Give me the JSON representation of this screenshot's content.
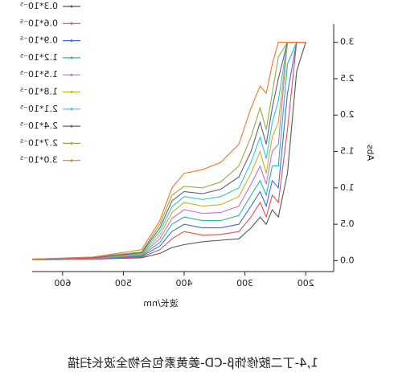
{
  "chart_data": {
    "type": "line",
    "x_label": "波长/nm",
    "y_label": "Abs",
    "caption": "1,4-丁二胺修饰β-CD-姜黄素包合物全波长扫描",
    "mirrored": true,
    "x": [
      650,
      550,
      470,
      440,
      420,
      400,
      370,
      340,
      310,
      290,
      275,
      265,
      255,
      245,
      230,
      215,
      200
    ],
    "series": [
      {
        "name": "0.3*10⁻⁵",
        "color": "#555555",
        "values": [
          0.01,
          0.02,
          0.04,
          0.1,
          0.18,
          0.22,
          0.26,
          0.28,
          0.3,
          0.45,
          0.6,
          0.5,
          0.7,
          0.6,
          1.2,
          2.6,
          3.0
        ]
      },
      {
        "name": "0.6*10⁻⁵",
        "color": "#e05050",
        "values": [
          0.01,
          0.02,
          0.05,
          0.15,
          0.3,
          0.4,
          0.35,
          0.36,
          0.4,
          0.6,
          0.8,
          0.6,
          0.9,
          0.8,
          1.8,
          3.0,
          3.0
        ]
      },
      {
        "name": "0.9*10⁻⁵",
        "color": "#3a6fd8",
        "values": [
          0.01,
          0.03,
          0.06,
          0.2,
          0.4,
          0.5,
          0.45,
          0.45,
          0.5,
          0.75,
          0.95,
          0.75,
          1.1,
          1.0,
          2.3,
          3.0,
          3.0
        ]
      },
      {
        "name": "1.2*10⁻⁵",
        "color": "#2cb5a0",
        "values": [
          0.01,
          0.03,
          0.07,
          0.25,
          0.5,
          0.6,
          0.55,
          0.55,
          0.62,
          0.9,
          1.1,
          0.9,
          1.3,
          1.3,
          2.7,
          3.0,
          3.0
        ]
      },
      {
        "name": "1.5*10⁻⁵",
        "color": "#c070e0",
        "values": [
          0.01,
          0.03,
          0.08,
          0.3,
          0.58,
          0.7,
          0.65,
          0.66,
          0.75,
          1.05,
          1.3,
          1.05,
          1.5,
          1.6,
          3.0,
          3.0,
          3.0
        ]
      },
      {
        "name": "1.8*10⁻⁵",
        "color": "#c8b020",
        "values": [
          0.02,
          0.04,
          0.09,
          0.35,
          0.66,
          0.8,
          0.75,
          0.77,
          0.88,
          1.2,
          1.5,
          1.2,
          1.7,
          1.9,
          3.0,
          3.0,
          3.0
        ]
      },
      {
        "name": "2.1*10⁻⁵",
        "color": "#30c8d8",
        "values": [
          0.02,
          0.04,
          0.1,
          0.4,
          0.74,
          0.88,
          0.84,
          0.88,
          1.0,
          1.35,
          1.7,
          1.4,
          1.9,
          2.2,
          3.0,
          3.0,
          3.0
        ]
      },
      {
        "name": "2.4*10⁻⁵",
        "color": "#6a5a7a",
        "values": [
          0.02,
          0.04,
          0.11,
          0.45,
          0.82,
          0.95,
          0.92,
          0.98,
          1.15,
          1.5,
          1.9,
          1.6,
          2.1,
          2.5,
          3.0,
          3.0,
          3.0
        ]
      },
      {
        "name": "2.7*10⁻⁵",
        "color": "#90b040",
        "values": [
          0.02,
          0.05,
          0.12,
          0.5,
          0.9,
          1.02,
          1.0,
          1.08,
          1.3,
          1.7,
          2.1,
          1.8,
          2.3,
          2.8,
          3.0,
          3.0,
          3.0
        ]
      },
      {
        "name": "3.0*10⁻⁵",
        "color": "#f07828",
        "values": [
          0.02,
          0.05,
          0.15,
          0.55,
          1.0,
          1.2,
          1.25,
          1.35,
          1.6,
          2.1,
          2.4,
          2.3,
          2.7,
          3.0,
          3.0,
          3.0,
          3.0
        ]
      }
    ],
    "xlim": [
      154,
      650
    ],
    "xticks": [
      200,
      300,
      400,
      500,
      600
    ],
    "ylim": [
      -0.15,
      3.25
    ],
    "yticks": [
      {
        "value": 0,
        "label": "0.0"
      },
      {
        "value": 0.5,
        "label": "0.5"
      },
      {
        "value": 1,
        "label": "1.0"
      },
      {
        "value": 1.5,
        "label": "1.5"
      },
      {
        "value": 2,
        "label": "2.0"
      },
      {
        "value": 2.5,
        "label": "2.5"
      },
      {
        "value": 3,
        "label": "3.0"
      }
    ]
  }
}
